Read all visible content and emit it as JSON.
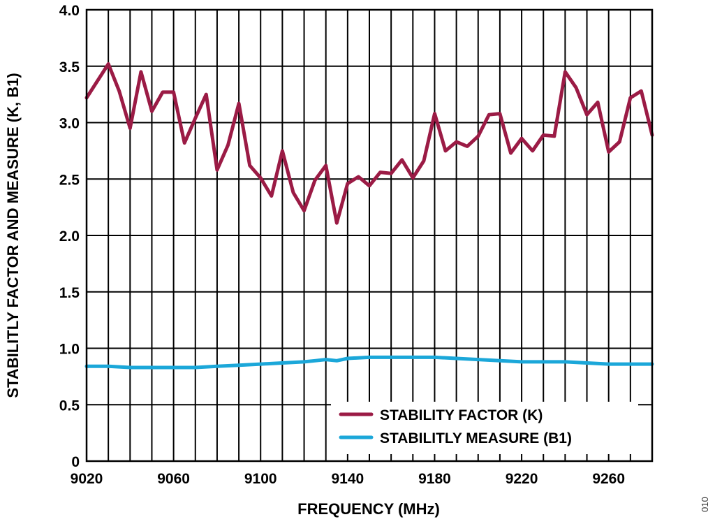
{
  "chart_data": {
    "type": "line",
    "title": "",
    "xlabel": "FREQUENCY (MHz)",
    "ylabel": "STABILITLY FACTOR AND MEASURE (K, B1)",
    "xlim": [
      9020,
      9280
    ],
    "ylim": [
      0,
      4.0
    ],
    "x_ticks": [
      9020,
      9060,
      9100,
      9140,
      9180,
      9220,
      9260
    ],
    "y_ticks": [
      "0",
      "0.5",
      "1.0",
      "1.5",
      "2.0",
      "2.5",
      "3.0",
      "3.5",
      "4.0"
    ],
    "grid": true,
    "legend_placement": "bottom-right",
    "figure_id": "010",
    "series": [
      {
        "name": "STABILITY FACTOR (K)",
        "color": "#9b1b45",
        "x": [
          9020,
          9030,
          9035,
          9040,
          9045,
          9050,
          9055,
          9060,
          9065,
          9070,
          9075,
          9080,
          9085,
          9090,
          9095,
          9100,
          9105,
          9110,
          9115,
          9120,
          9125,
          9130,
          9135,
          9140,
          9145,
          9150,
          9155,
          9160,
          9165,
          9170,
          9175,
          9180,
          9185,
          9190,
          9195,
          9200,
          9205,
          9210,
          9215,
          9220,
          9225,
          9230,
          9235,
          9240,
          9245,
          9250,
          9255,
          9260,
          9265,
          9270,
          9275,
          9280
        ],
        "values": [
          3.22,
          3.52,
          3.28,
          2.95,
          3.45,
          3.1,
          3.27,
          3.27,
          2.82,
          3.04,
          3.25,
          2.58,
          2.8,
          3.17,
          2.62,
          2.51,
          2.35,
          2.75,
          2.38,
          2.22,
          2.49,
          2.62,
          2.11,
          2.46,
          2.52,
          2.44,
          2.56,
          2.55,
          2.67,
          2.51,
          2.66,
          3.08,
          2.75,
          2.83,
          2.79,
          2.88,
          3.07,
          3.08,
          2.73,
          2.86,
          2.75,
          2.89,
          2.88,
          3.45,
          3.31,
          3.07,
          3.18,
          2.74,
          2.83,
          3.22,
          3.28,
          2.89
        ]
      },
      {
        "name": "STABILITLY MEASURE (B1)",
        "color": "#1ba7d9",
        "x": [
          9020,
          9030,
          9040,
          9050,
          9060,
          9070,
          9080,
          9090,
          9100,
          9110,
          9120,
          9125,
          9130,
          9135,
          9140,
          9150,
          9160,
          9170,
          9180,
          9190,
          9200,
          9210,
          9220,
          9230,
          9240,
          9250,
          9260,
          9270,
          9280
        ],
        "values": [
          0.84,
          0.84,
          0.83,
          0.83,
          0.83,
          0.83,
          0.84,
          0.85,
          0.86,
          0.87,
          0.88,
          0.89,
          0.9,
          0.89,
          0.91,
          0.92,
          0.92,
          0.92,
          0.92,
          0.91,
          0.9,
          0.89,
          0.88,
          0.88,
          0.88,
          0.87,
          0.86,
          0.86,
          0.86
        ]
      }
    ]
  }
}
